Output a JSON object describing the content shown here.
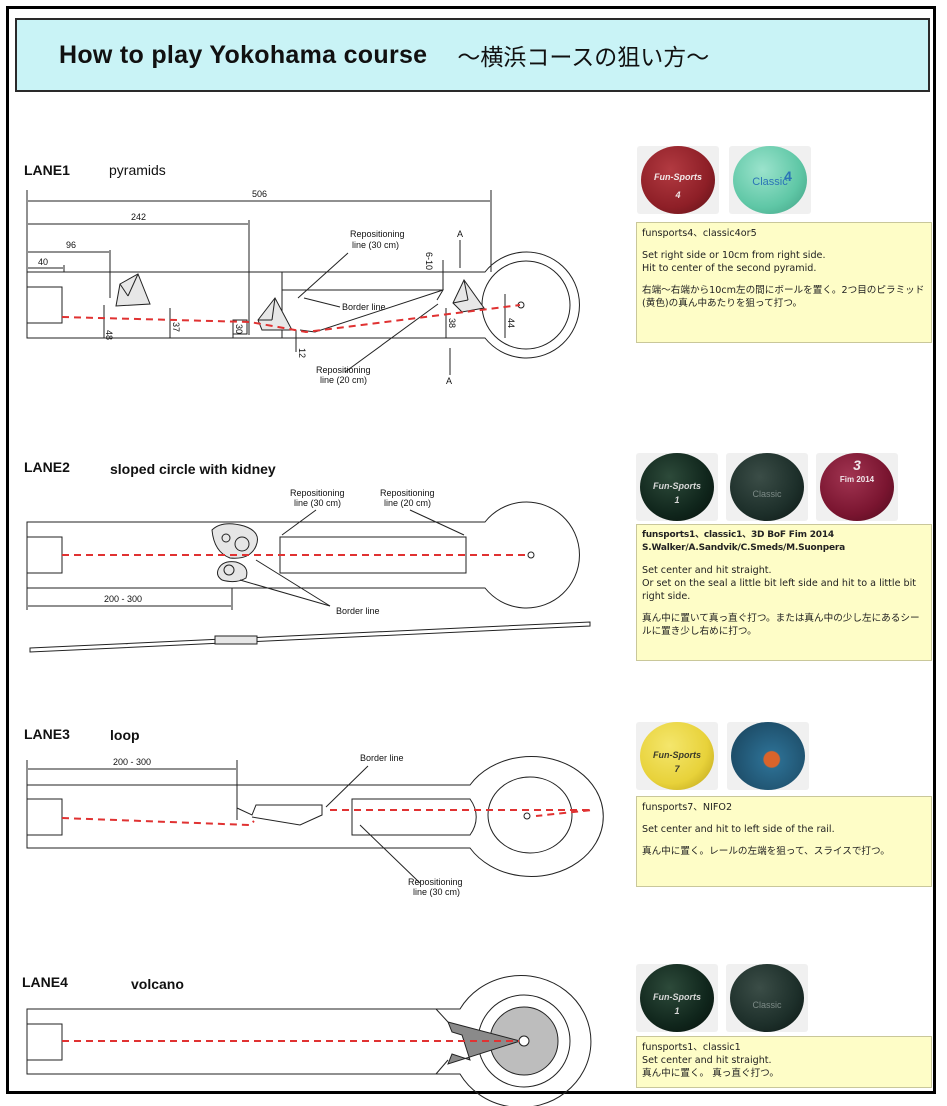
{
  "header": {
    "title_en": "How to play Yokohama course",
    "title_jp": "〜横浜コースの狙い方〜"
  },
  "diagram_labels": {
    "repositioning_30": "Repositioning",
    "repositioning_30_b": "line (30 cm)",
    "repositioning_20": "Repositioning",
    "repositioning_20_b": "line (20 cm)",
    "border_line": "Border line",
    "section_a": "A",
    "range_200_300": "200 - 300"
  },
  "lanes": [
    {
      "title": "LANE1",
      "name": "pyramids",
      "dims": {
        "d506": "506",
        "d242": "242",
        "d96": "96",
        "d40": "40",
        "d48": "48",
        "d37": "37",
        "d30": "30",
        "d12": "12",
        "d6_10": "6-10",
        "d38": "38",
        "d44": "44"
      },
      "balls": [
        {
          "label": "Fun-Sports",
          "num": "4",
          "color": "#8e1f27"
        },
        {
          "label": "Classic",
          "num": "4",
          "color": "#5fc7a6"
        }
      ],
      "note": {
        "balls": "funsports4、classic4or5",
        "en": [
          "Set right side or 10cm from right side.",
          "Hit to center of the second pyramid."
        ],
        "jp": "右端〜右端から10cm左の間にボールを置く。2つ目のピラミッド(黄色)の真ん中あたりを狙って打つ。"
      }
    },
    {
      "title": "LANE2",
      "name": "sloped circle with kidney",
      "balls": [
        {
          "label": "Fun-Sports",
          "num": "1",
          "color": "#10261c"
        },
        {
          "label": "Classic",
          "num": "1",
          "color": "#1d2f2a"
        },
        {
          "label": "Fim 2014",
          "num": "3",
          "color": "#7a1530"
        }
      ],
      "note": {
        "balls": "funsports1、classic1、3D BoF Fim 2014",
        "names": "S.Walker/A.Sandvik/C.Smeds/M.Suonpera",
        "en": [
          "Set center and hit straight.",
          "Or set on the seal a little bit left side and hit to a little bit right side."
        ],
        "jp": "真ん中に置いて真っ直ぐ打つ。または真ん中の少し左にあるシールに置き少し右めに打つ。"
      }
    },
    {
      "title": "LANE3",
      "name": "loop",
      "balls": [
        {
          "label": "Fun-Sports",
          "num": "7",
          "color": "#e8d23a"
        },
        {
          "label": "",
          "num": "",
          "color": "#2b6c8f"
        }
      ],
      "note": {
        "balls": "funsports7、NIFO2",
        "en": [
          "Set center and hit to left side of the rail."
        ],
        "jp": "真ん中に置く。レールの左端を狙って、スライスで打つ。"
      }
    },
    {
      "title": "LANE4",
      "name": "volcano",
      "balls": [
        {
          "label": "Fun-Sports",
          "num": "1",
          "color": "#10261c"
        },
        {
          "label": "Classic",
          "num": "1",
          "color": "#1d2f2a"
        }
      ],
      "note": {
        "balls": "funsports1、classic1",
        "en": [
          "Set center and hit straight."
        ],
        "jp": "真ん中に置く。 真っ直ぐ打つ。"
      }
    }
  ]
}
